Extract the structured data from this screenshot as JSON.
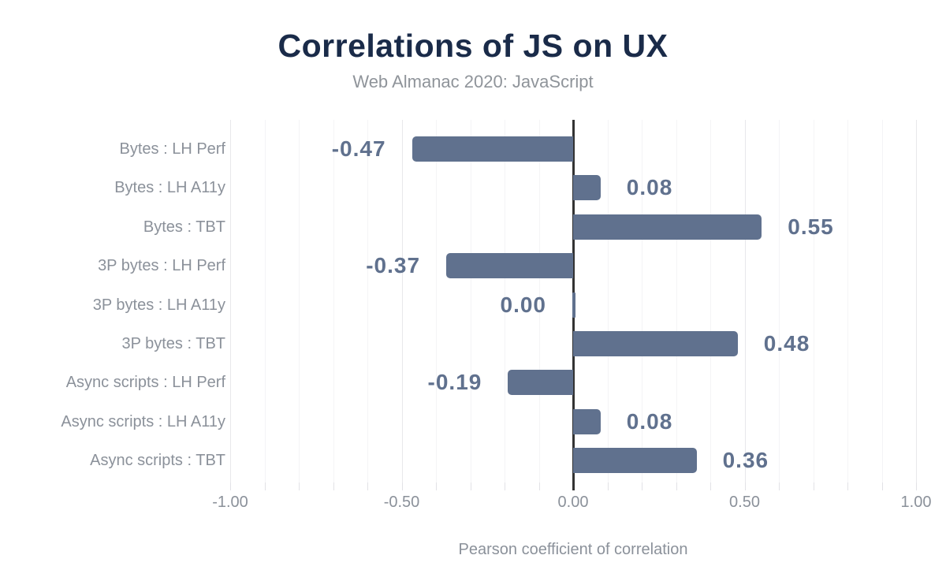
{
  "header": {
    "title": "Correlations of JS on UX",
    "subtitle": "Web Almanac 2020: JavaScript"
  },
  "chart_data": {
    "type": "bar",
    "orientation": "horizontal",
    "title": "Correlations of JS on UX",
    "subtitle": "Web Almanac 2020: JavaScript",
    "xlabel": "Pearson coefficient of correlation",
    "xlim": [
      -1.0,
      1.0
    ],
    "grid": true,
    "legend": false,
    "minor_tick_step": 0.1,
    "x_major_ticks": [
      {
        "value": -1.0,
        "label": "-1.00"
      },
      {
        "value": -0.5,
        "label": "-0.50"
      },
      {
        "value": 0.0,
        "label": "0.00"
      },
      {
        "value": 0.5,
        "label": "0.50"
      },
      {
        "value": 1.0,
        "label": "1.00"
      }
    ],
    "categories": [
      "Bytes : LH Perf",
      "Bytes : LH A11y",
      "Bytes : TBT",
      "3P bytes : LH Perf",
      "3P bytes : LH A11y",
      "3P bytes : TBT",
      "Async scripts : LH Perf",
      "Async scripts : LH A11y",
      "Async scripts : TBT"
    ],
    "values": [
      -0.47,
      0.08,
      0.55,
      -0.37,
      0.0,
      0.48,
      -0.19,
      0.08,
      0.36
    ],
    "value_labels": [
      "-0.47",
      "0.08",
      "0.55",
      "-0.37",
      "0.00",
      "0.48",
      "-0.19",
      "0.08",
      "0.36"
    ],
    "colors": {
      "bar": "#60718e",
      "value_label": "#60718e",
      "title": "#1a2b49",
      "subtitle": "#8f949a",
      "category_label": "#8b919a",
      "tick_label": "#8b919a",
      "axis_label": "#8b919a",
      "zero_line": "#333333",
      "grid_minor": "#f4f4f6",
      "grid_major": "#e8e8eb",
      "tick_mark": "#e2e2e6"
    }
  }
}
